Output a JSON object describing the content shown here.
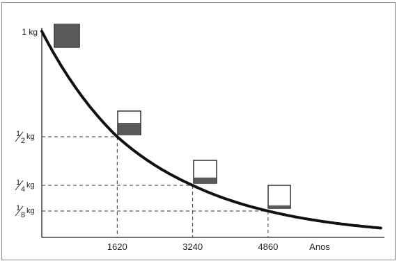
{
  "chart_data": {
    "type": "line",
    "title": "",
    "xlabel": "Anos",
    "ylabel": "",
    "x_ticks": [
      {
        "value": 1620,
        "label": "1620"
      },
      {
        "value": 3240,
        "label": "3240"
      },
      {
        "value": 4860,
        "label": "4860"
      }
    ],
    "y_ticks": [
      {
        "value": 1,
        "label": "1 kg",
        "num": "1",
        "den": "",
        "unit": "kg"
      },
      {
        "value": 0.5,
        "label": "1/2 kg",
        "num": "1",
        "den": "2",
        "unit": "kg"
      },
      {
        "value": 0.25,
        "label": "1/4 kg",
        "num": "1",
        "den": "4",
        "unit": "kg"
      },
      {
        "value": 0.125,
        "label": "1/8 kg",
        "num": "1",
        "den": "8",
        "unit": "kg"
      }
    ],
    "series": [
      {
        "x": [
          0,
          1620,
          3240,
          4860,
          7300
        ],
        "y": [
          1,
          0.5,
          0.25,
          0.125,
          0.044
        ],
        "color": "#111111"
      }
    ],
    "markers": [
      {
        "x": 0,
        "y": 1,
        "fill_fraction": 1
      },
      {
        "x": 1620,
        "y": 0.5,
        "fill_fraction": 0.5
      },
      {
        "x": 3240,
        "y": 0.25,
        "fill_fraction": 0.25
      },
      {
        "x": 4860,
        "y": 0.125,
        "fill_fraction": 0.125
      }
    ],
    "xlim": [
      0,
      7300
    ],
    "ylim": [
      0,
      1
    ],
    "grid": false,
    "colors": {
      "curve": "#111111",
      "fill": "#5a5a5a",
      "guides": "#333333"
    }
  }
}
